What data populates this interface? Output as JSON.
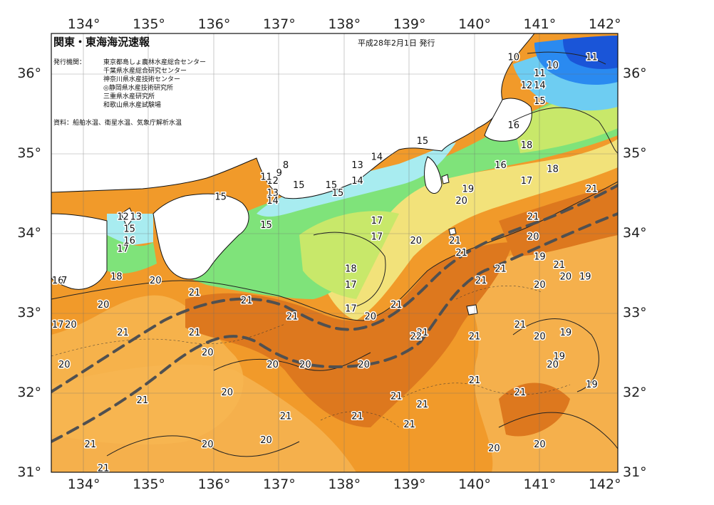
{
  "header": {
    "title": "関東・東海海況速報",
    "date": "平成28年2月1日 発行",
    "issuer_label": "発行機関：",
    "issuers": [
      "東京都島しょ農林水産総合センター",
      "千葉県水産総合研究センター",
      "神奈川県水産技術センター",
      "◎静岡県水産技術研究所",
      "三重県水産研究所",
      "和歌山県水産試験場"
    ],
    "source": "資料：船舶水温、衛星水温、気象庁解析水温"
  },
  "axes": {
    "lon_ticks": [
      134,
      135,
      136,
      137,
      138,
      139,
      140,
      141,
      142
    ],
    "lat_ticks": [
      31,
      32,
      33,
      34,
      35,
      36
    ],
    "lon_range": [
      133.5,
      142.2
    ],
    "lat_range": [
      31,
      36.5
    ],
    "degree_suffix": "°"
  },
  "isotherm_labels": [
    {
      "text": "10",
      "lon": 140.6,
      "lat": 36.2
    },
    {
      "text": "10",
      "lon": 141.2,
      "lat": 36.1
    },
    {
      "text": "11",
      "lon": 141.8,
      "lat": 36.2
    },
    {
      "text": "11",
      "lon": 141.0,
      "lat": 36.0
    },
    {
      "text": "12",
      "lon": 140.8,
      "lat": 35.85
    },
    {
      "text": "14",
      "lon": 141.0,
      "lat": 35.85
    },
    {
      "text": "15",
      "lon": 141.0,
      "lat": 35.65
    },
    {
      "text": "16",
      "lon": 140.6,
      "lat": 35.35
    },
    {
      "text": "18",
      "lon": 140.8,
      "lat": 35.1
    },
    {
      "text": "16",
      "lon": 140.4,
      "lat": 34.85
    },
    {
      "text": "18",
      "lon": 141.2,
      "lat": 34.8
    },
    {
      "text": "17",
      "lon": 140.8,
      "lat": 34.65
    },
    {
      "text": "21",
      "lon": 141.8,
      "lat": 34.55
    },
    {
      "text": "19",
      "lon": 139.9,
      "lat": 34.55
    },
    {
      "text": "20",
      "lon": 139.8,
      "lat": 34.4
    },
    {
      "text": "21",
      "lon": 140.9,
      "lat": 34.2
    },
    {
      "text": "20",
      "lon": 140.9,
      "lat": 33.95
    },
    {
      "text": "15",
      "lon": 139.2,
      "lat": 35.15
    },
    {
      "text": "14",
      "lon": 138.5,
      "lat": 34.95
    },
    {
      "text": "13",
      "lon": 138.2,
      "lat": 34.85
    },
    {
      "text": "14",
      "lon": 138.2,
      "lat": 34.65
    },
    {
      "text": "15",
      "lon": 137.8,
      "lat": 34.6
    },
    {
      "text": "15",
      "lon": 137.3,
      "lat": 34.6
    },
    {
      "text": "15",
      "lon": 137.9,
      "lat": 34.5
    },
    {
      "text": "15",
      "lon": 136.1,
      "lat": 34.45
    },
    {
      "text": "15",
      "lon": 136.8,
      "lat": 34.1
    },
    {
      "text": "13",
      "lon": 136.9,
      "lat": 34.5
    },
    {
      "text": "14",
      "lon": 136.9,
      "lat": 34.4
    },
    {
      "text": "12",
      "lon": 136.9,
      "lat": 34.65
    },
    {
      "text": "11",
      "lon": 136.8,
      "lat": 34.7
    },
    {
      "text": "9",
      "lon": 137.0,
      "lat": 34.75
    },
    {
      "text": "8",
      "lon": 137.1,
      "lat": 34.85
    },
    {
      "text": "17",
      "lon": 138.5,
      "lat": 34.15
    },
    {
      "text": "17",
      "lon": 138.5,
      "lat": 33.95
    },
    {
      "text": "20",
      "lon": 139.1,
      "lat": 33.9
    },
    {
      "text": "21",
      "lon": 139.7,
      "lat": 33.9
    },
    {
      "text": "21",
      "lon": 139.8,
      "lat": 33.75
    },
    {
      "text": "18",
      "lon": 138.1,
      "lat": 33.55
    },
    {
      "text": "17",
      "lon": 138.1,
      "lat": 33.35
    },
    {
      "text": "17",
      "lon": 138.1,
      "lat": 33.05
    },
    {
      "text": "20",
      "lon": 138.4,
      "lat": 32.95
    },
    {
      "text": "21",
      "lon": 138.8,
      "lat": 33.1
    },
    {
      "text": "21",
      "lon": 140.4,
      "lat": 33.55
    },
    {
      "text": "21",
      "lon": 140.1,
      "lat": 33.4
    },
    {
      "text": "19",
      "lon": 141.0,
      "lat": 33.7
    },
    {
      "text": "21",
      "lon": 141.3,
      "lat": 33.6
    },
    {
      "text": "20",
      "lon": 141.4,
      "lat": 33.45
    },
    {
      "text": "19",
      "lon": 141.7,
      "lat": 33.45
    },
    {
      "text": "20",
      "lon": 141.0,
      "lat": 33.35
    },
    {
      "text": "21",
      "lon": 140.7,
      "lat": 32.85
    },
    {
      "text": "20",
      "lon": 141.0,
      "lat": 32.7
    },
    {
      "text": "19",
      "lon": 141.4,
      "lat": 32.75
    },
    {
      "text": "19",
      "lon": 141.3,
      "lat": 32.45
    },
    {
      "text": "20",
      "lon": 141.2,
      "lat": 32.35
    },
    {
      "text": "19",
      "lon": 141.8,
      "lat": 32.1
    },
    {
      "text": "21",
      "lon": 140.0,
      "lat": 32.7
    },
    {
      "text": "21",
      "lon": 139.2,
      "lat": 32.75
    },
    {
      "text": "22",
      "lon": 139.1,
      "lat": 32.7
    },
    {
      "text": "21",
      "lon": 140.0,
      "lat": 32.15
    },
    {
      "text": "21",
      "lon": 140.7,
      "lat": 32.0
    },
    {
      "text": "21",
      "lon": 139.2,
      "lat": 31.85
    },
    {
      "text": "21",
      "lon": 138.8,
      "lat": 31.95
    },
    {
      "text": "21",
      "lon": 138.2,
      "lat": 31.7
    },
    {
      "text": "21",
      "lon": 139.0,
      "lat": 31.6
    },
    {
      "text": "20",
      "lon": 140.3,
      "lat": 31.3
    },
    {
      "text": "20",
      "lon": 141.0,
      "lat": 31.35
    },
    {
      "text": "21",
      "lon": 137.1,
      "lat": 31.7
    },
    {
      "text": "20",
      "lon": 136.8,
      "lat": 31.4
    },
    {
      "text": "20",
      "lon": 137.4,
      "lat": 32.35
    },
    {
      "text": "20",
      "lon": 138.3,
      "lat": 32.35
    },
    {
      "text": "21",
      "lon": 136.5,
      "lat": 33.15
    },
    {
      "text": "21",
      "lon": 137.2,
      "lat": 32.95
    },
    {
      "text": "21",
      "lon": 135.7,
      "lat": 33.25
    },
    {
      "text": "21",
      "lon": 135.7,
      "lat": 32.75
    },
    {
      "text": "20",
      "lon": 135.9,
      "lat": 32.5
    },
    {
      "text": "20",
      "lon": 136.2,
      "lat": 32.0
    },
    {
      "text": "20",
      "lon": 136.9,
      "lat": 32.35
    },
    {
      "text": "21",
      "lon": 134.6,
      "lat": 32.75
    },
    {
      "text": "20",
      "lon": 135.1,
      "lat": 33.4
    },
    {
      "text": "18",
      "lon": 134.5,
      "lat": 33.45
    },
    {
      "text": "20",
      "lon": 134.3,
      "lat": 33.1
    },
    {
      "text": "16",
      "lon": 134.7,
      "lat": 33.9
    },
    {
      "text": "17",
      "lon": 134.6,
      "lat": 33.8
    },
    {
      "text": "15",
      "lon": 134.7,
      "lat": 34.05
    },
    {
      "text": "13",
      "lon": 134.8,
      "lat": 34.2
    },
    {
      "text": "12",
      "lon": 134.6,
      "lat": 34.2
    },
    {
      "text": "16",
      "lon": 133.6,
      "lat": 33.4
    },
    {
      "text": "7",
      "lon": 133.7,
      "lat": 33.4
    },
    {
      "text": "20",
      "lon": 133.7,
      "lat": 32.35
    },
    {
      "text": "21",
      "lon": 134.9,
      "lat": 31.9
    },
    {
      "text": "21",
      "lon": 134.1,
      "lat": 31.35
    },
    {
      "text": "21",
      "lon": 134.3,
      "lat": 31.05
    },
    {
      "text": "20",
      "lon": 135.9,
      "lat": 31.35
    },
    {
      "text": "17",
      "lon": 133.6,
      "lat": 32.85
    },
    {
      "text": "20",
      "lon": 133.8,
      "lat": 32.85
    }
  ],
  "colors": {
    "deep_blue": "#1a55d8",
    "blue": "#2a8af0",
    "light_blue": "#6ecdf2",
    "cyan": "#a8ecf0",
    "green": "#7fe37a",
    "yellow_green": "#c8e86a",
    "yellow": "#f2e27a",
    "light_orange": "#f7b651",
    "orange": "#f19a2a",
    "dark_orange": "#df7a1e",
    "land": "#ffffff",
    "kuroshio_axis": "#505050"
  }
}
